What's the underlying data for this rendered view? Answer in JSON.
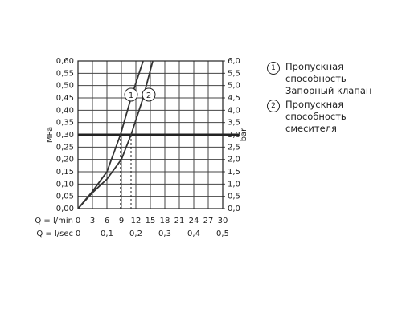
{
  "chart_data": {
    "type": "line",
    "ylabel": "MPa",
    "y2label": "bar",
    "xlabel": "Q = l/min",
    "x2label": "Q = l/sec",
    "xlim": [
      0,
      30
    ],
    "xticks": [
      0,
      3,
      6,
      9,
      12,
      15,
      18,
      21,
      24,
      27,
      30
    ],
    "x2lim": [
      0,
      0.5
    ],
    "x2ticks": [
      0,
      {
        "value": 0.1,
        "label": "0,1"
      },
      {
        "value": 0.2,
        "label": "0,2"
      },
      {
        "value": 0.3,
        "label": "0,3"
      },
      {
        "value": 0.4,
        "label": "0,4"
      },
      {
        "value": 0.5,
        "label": "0,5"
      }
    ],
    "ylim": [
      0,
      0.6
    ],
    "yticks": [
      {
        "value": 0,
        "label": "0,00"
      },
      {
        "value": 0.05,
        "label": "0,05"
      },
      {
        "value": 0.1,
        "label": "0,10"
      },
      {
        "value": 0.15,
        "label": "0,15"
      },
      {
        "value": 0.2,
        "label": "0,20"
      },
      {
        "value": 0.25,
        "label": "0,25"
      },
      {
        "value": 0.3,
        "label": "0,30"
      },
      {
        "value": 0.35,
        "label": "0,35"
      },
      {
        "value": 0.4,
        "label": "0,40"
      },
      {
        "value": 0.45,
        "label": "0,45"
      },
      {
        "value": 0.5,
        "label": "0,50"
      },
      {
        "value": 0.55,
        "label": "0,55"
      },
      {
        "value": 0.6,
        "label": "0,60"
      }
    ],
    "y2lim": [
      0,
      6
    ],
    "y2ticks": [
      {
        "value": 0,
        "label": "0,0"
      },
      {
        "value": 0.5,
        "label": "0,5"
      },
      {
        "value": 1,
        "label": "1,0"
      },
      {
        "value": 1.5,
        "label": "1,5"
      },
      {
        "value": 2,
        "label": "2,0"
      },
      {
        "value": 2.5,
        "label": "2,5"
      },
      {
        "value": 3,
        "label": "3,0"
      },
      {
        "value": 3.5,
        "label": "3,5"
      },
      {
        "value": 4,
        "label": "4,0"
      },
      {
        "value": 4.5,
        "label": "4,5"
      },
      {
        "value": 5,
        "label": "5,0"
      },
      {
        "value": 5.5,
        "label": "5,5"
      },
      {
        "value": 6,
        "label": "6,0"
      }
    ],
    "grid": true,
    "reference_line": 0.3,
    "dashed_x": [
      8.8,
      11
    ],
    "series": [
      {
        "name": "Пропускная способность Запорный клапан",
        "label": "1",
        "color": "#333333",
        "x": [
          0,
          3,
          6,
          8.8,
          11,
          13.5
        ],
        "values": [
          0,
          0.07,
          0.15,
          0.3,
          0.45,
          0.6
        ]
      },
      {
        "name": "Пропускная способность смесителя",
        "label": "2",
        "color": "#333333",
        "x": [
          0,
          3,
          6,
          9,
          11,
          13.5,
          15.5
        ],
        "values": [
          0,
          0.065,
          0.12,
          0.2,
          0.3,
          0.45,
          0.6
        ]
      }
    ]
  }
}
